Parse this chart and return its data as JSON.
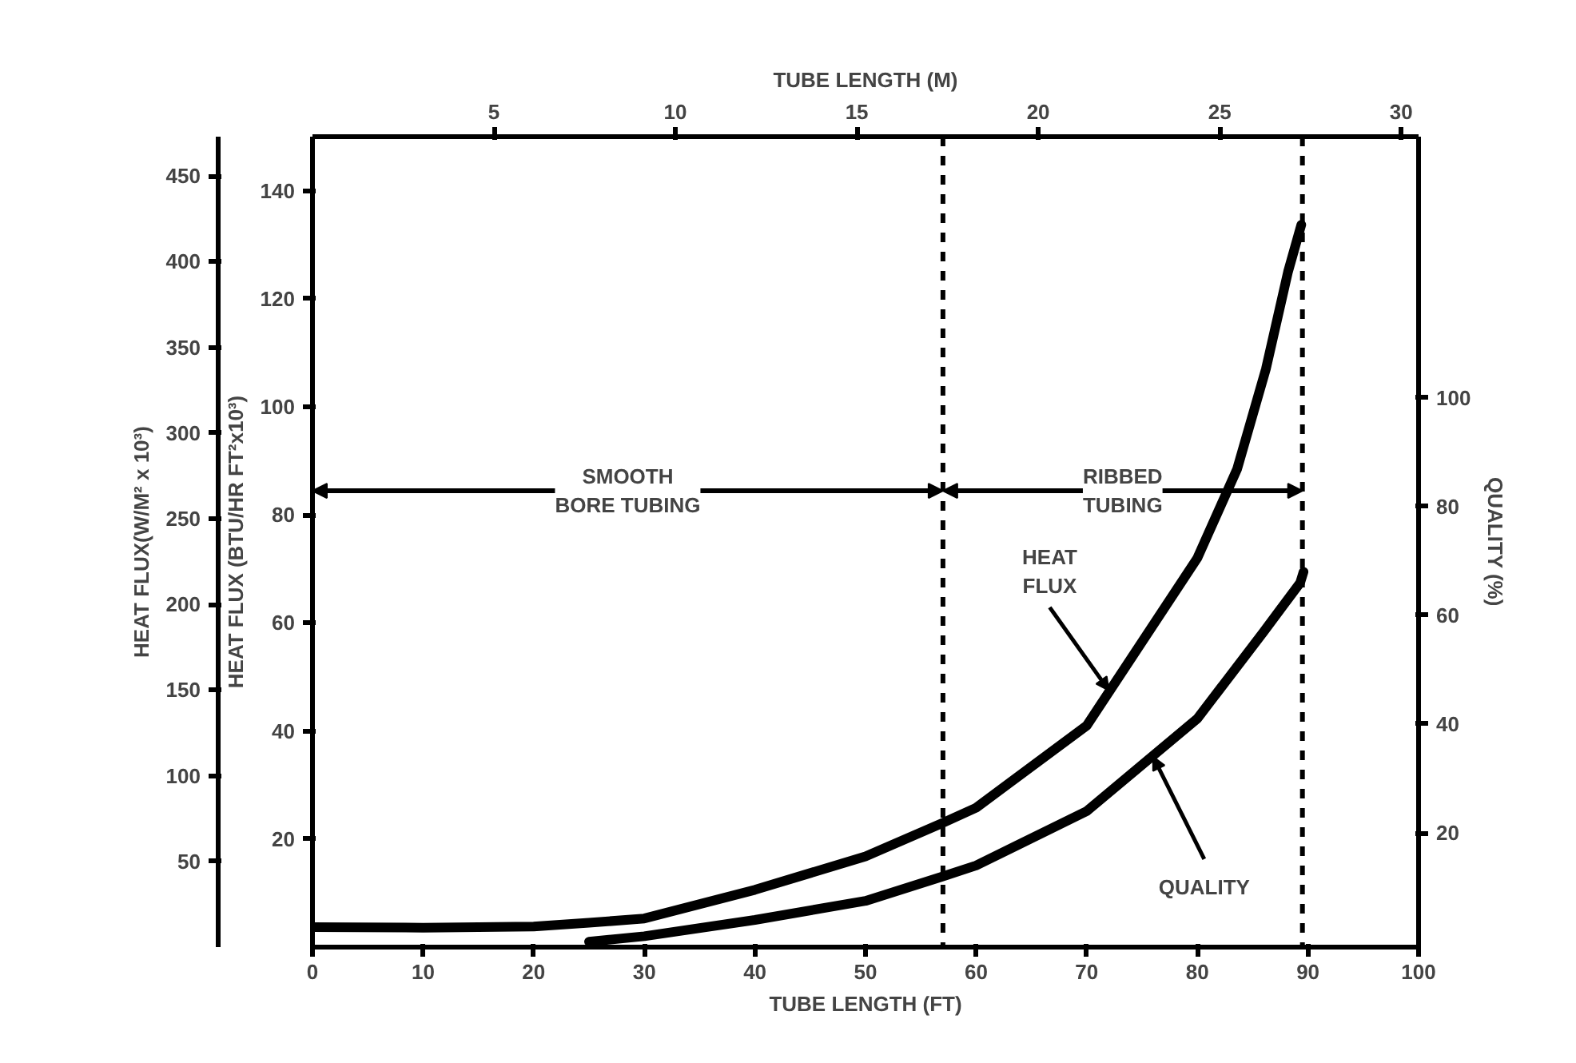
{
  "chart_data": {
    "type": "line",
    "xlabel": "TUBE LENGTH (FT)",
    "x2label": "TUBE LENGTH (M)",
    "ylabel": "HEAT FLUX (BTU/HR FT²x10³)",
    "y2label": "QUALITY (%)",
    "y3label": "HEAT FLUX(W/M² x 10³)",
    "xlim": [
      0,
      100
    ],
    "xticks": [
      0,
      10,
      20,
      30,
      40,
      50,
      60,
      70,
      80,
      90,
      100
    ],
    "x2lim": [
      0,
      30.48
    ],
    "x2ticks": [
      5,
      10,
      15,
      20,
      25,
      30
    ],
    "ylim": [
      0,
      150
    ],
    "yticks": [
      20,
      40,
      60,
      80,
      100,
      120,
      140
    ],
    "y2lim": [
      -1,
      148
    ],
    "y2ticks": [
      20,
      40,
      60,
      80,
      100
    ],
    "y3lim": [
      0,
      473
    ],
    "y3ticks": [
      50,
      100,
      150,
      200,
      250,
      300,
      350,
      400,
      450
    ],
    "grid": false,
    "marker": "none",
    "line_style": "solid",
    "series": [
      {
        "color": "#000000",
        "x": [
          0,
          10,
          20,
          25,
          30,
          40,
          50,
          57,
          60,
          70,
          80,
          83.6,
          86.2,
          88.2,
          89.4
        ],
        "values": [
          3.7,
          3.6,
          3.8,
          4.5,
          5.3,
          10.6,
          16.8,
          23,
          25.8,
          41,
          72,
          88.5,
          107,
          125,
          133.7
        ]
      },
      {
        "color": "#000000",
        "axis": "y2",
        "x": [
          25,
          30,
          40,
          50,
          57,
          60,
          70,
          80,
          86,
          89.3,
          89.6
        ],
        "values": [
          0,
          1,
          4,
          7.5,
          12,
          14,
          24,
          41,
          57,
          66,
          68
        ]
      }
    ],
    "ref_lines": [
      {
        "axis": "x",
        "value": 57,
        "line_style": "dashed"
      },
      {
        "axis": "x",
        "value": 89.5,
        "line_style": "dashed"
      }
    ],
    "annotations": [
      "SMOOTH\nBORE TUBING",
      "RIBBED\nTUBING",
      {
        "text": "HEAT\nFLUX",
        "x": 72,
        "y": 47.5
      },
      {
        "text": "QUALITY",
        "x": 76,
        "y": 34
      }
    ]
  }
}
